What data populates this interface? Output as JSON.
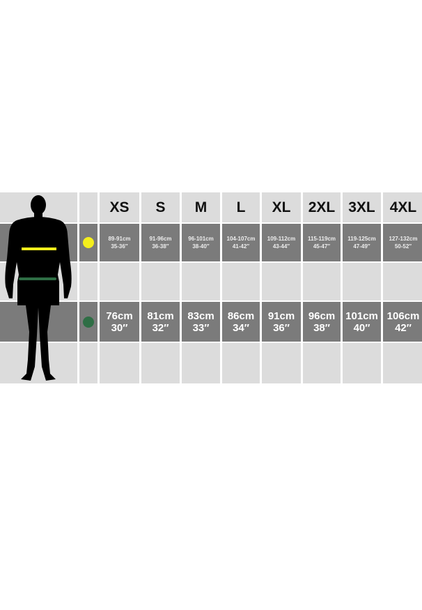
{
  "sizes": [
    "XS",
    "S",
    "M",
    "L",
    "XL",
    "2XL",
    "3XL",
    "4XL"
  ],
  "colors": {
    "chest": "#f4ee1c",
    "waist": "#2f6e45",
    "dark_row": "#7b7b7b",
    "light_row": "#dcdcdc"
  },
  "chest": {
    "icon": "yellow-dot",
    "cm": [
      "89-91cm",
      "91-96cm",
      "96-101cm",
      "104-107cm",
      "109-112cm",
      "115-119cm",
      "119-125cm",
      "127-132cm"
    ],
    "in": [
      "35-36″",
      "36-38″",
      "38-40″",
      "41-42″",
      "43-44″",
      "45-47″",
      "47-49″",
      "50-52″"
    ]
  },
  "waist": {
    "icon": "green-dot",
    "cm": [
      "76cm",
      "81cm",
      "83cm",
      "86cm",
      "91cm",
      "96cm",
      "101cm",
      "106cm"
    ],
    "in": [
      "30″",
      "32″",
      "33″",
      "34″",
      "36″",
      "38″",
      "40″",
      "42″"
    ]
  }
}
